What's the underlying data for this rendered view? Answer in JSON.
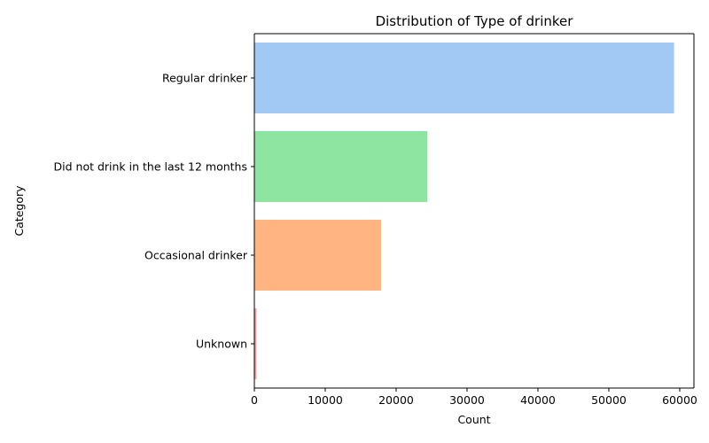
{
  "chart_data": {
    "type": "bar",
    "orientation": "horizontal",
    "title": "Distribution of Type of drinker",
    "xlabel": "Count",
    "ylabel": "Category",
    "categories": [
      "Regular drinker",
      "Did not drink in the last 12 months",
      "Occasional drinker",
      "Unknown"
    ],
    "values": [
      59200,
      24400,
      17900,
      300
    ],
    "colors": [
      "#a1c9f4",
      "#8de5a1",
      "#ffb482",
      "#ff9f9b"
    ],
    "xlim": [
      0,
      62000
    ],
    "xticks": [
      0,
      10000,
      20000,
      30000,
      40000,
      50000,
      60000
    ],
    "grid": false,
    "legend": "none"
  }
}
